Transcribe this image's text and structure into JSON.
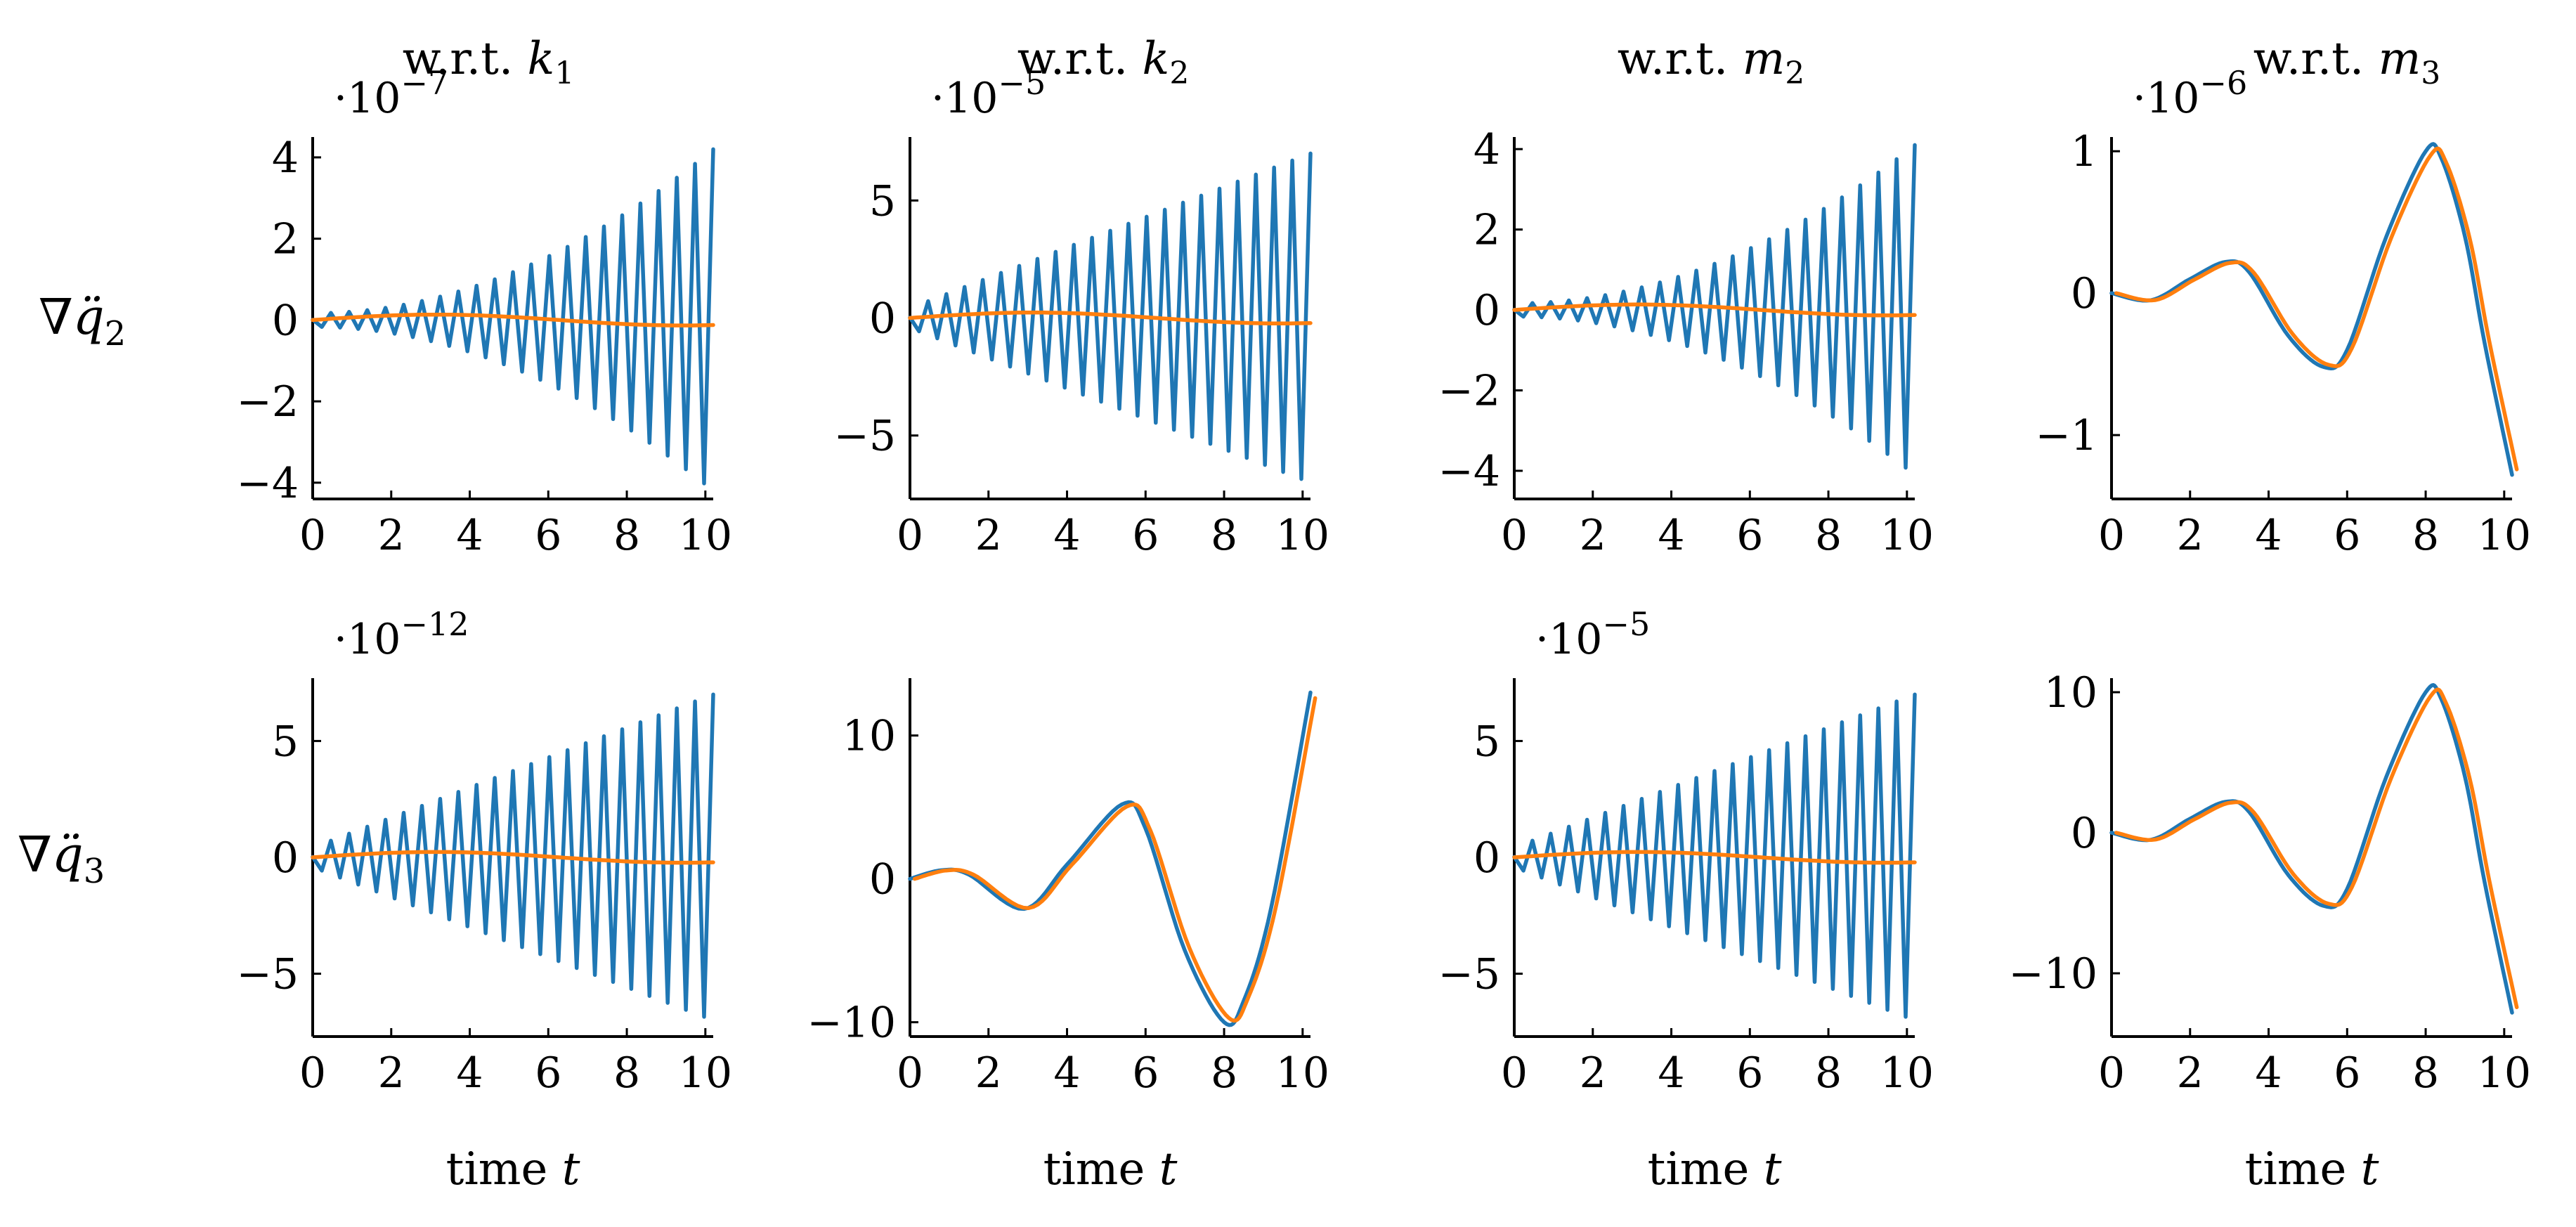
{
  "colors": {
    "blue": "#1f77b4",
    "orange": "#ff7f0e"
  },
  "col_titles": [
    "w.r.t. k1",
    "w.r.t. k2",
    "w.r.t. m2",
    "w.r.t. m3"
  ],
  "row_labels": [
    "∇q̈2",
    "∇q̈3"
  ],
  "chart_data": [
    {
      "type": "line",
      "row": 0,
      "col": 0,
      "title": "w.r.t. k1",
      "xlabel": "",
      "exponent": "·10−7",
      "xlim": [
        0,
        10.2
      ],
      "ylim": [
        -4.4,
        4.5
      ],
      "xticks": [
        0,
        2,
        4,
        6,
        8,
        10
      ],
      "yticks": [
        -4,
        -2,
        0,
        2,
        4
      ],
      "shape": "osc",
      "amplitude_end": 4.2,
      "growth": "quadratic",
      "offset_end": 0,
      "series_orange": "flat near zero"
    },
    {
      "type": "line",
      "row": 0,
      "col": 1,
      "title": "w.r.t. k2",
      "xlabel": "",
      "exponent": "·10−5",
      "xlim": [
        0,
        10.2
      ],
      "ylim": [
        -7.7,
        7.7
      ],
      "xticks": [
        0,
        2,
        4,
        6,
        8,
        10
      ],
      "yticks": [
        -5,
        0,
        5
      ],
      "shape": "osc",
      "amplitude_end": 7.0,
      "growth": "linear",
      "offset_end": 0,
      "series_orange": "flat near zero"
    },
    {
      "type": "line",
      "row": 0,
      "col": 2,
      "title": "w.r.t. m2",
      "xlabel": "",
      "exponent": "",
      "xlim": [
        0,
        10.2
      ],
      "ylim": [
        -4.7,
        4.3
      ],
      "xticks": [
        0,
        2,
        4,
        6,
        8,
        10
      ],
      "yticks": [
        -4,
        -2,
        0,
        2,
        4
      ],
      "shape": "osc",
      "amplitude_end": 4.1,
      "growth": "quadratic",
      "offset_end": 0,
      "series_orange": "flat near zero"
    },
    {
      "type": "line",
      "row": 0,
      "col": 3,
      "title": "w.r.t. m3",
      "xlabel": "",
      "exponent": "·10−6",
      "xlim": [
        0,
        10.2
      ],
      "ylim": [
        -1.45,
        1.1
      ],
      "xticks": [
        0,
        2,
        4,
        6,
        8,
        10
      ],
      "yticks": [
        -1,
        0,
        1
      ],
      "shape": "smooth",
      "scale": 1.0,
      "points": [
        [
          0,
          0.0
        ],
        [
          1,
          -0.05
        ],
        [
          2,
          0.1
        ],
        [
          2.9,
          0.22
        ],
        [
          3.5,
          0.15
        ],
        [
          4.5,
          -0.3
        ],
        [
          5.4,
          -0.52
        ],
        [
          6.0,
          -0.4
        ],
        [
          7.0,
          0.4
        ],
        [
          8.0,
          1.0
        ],
        [
          8.4,
          0.95
        ],
        [
          9.0,
          0.4
        ],
        [
          9.5,
          -0.35
        ],
        [
          10.2,
          -1.28
        ]
      ],
      "series_orange": "nearly identical, slightly lagged"
    },
    {
      "type": "line",
      "row": 1,
      "col": 0,
      "title": "",
      "xlabel": "time t",
      "exponent": "·10−12",
      "xlim": [
        0,
        10.2
      ],
      "ylim": [
        -7.7,
        7.7
      ],
      "xticks": [
        0,
        2,
        4,
        6,
        8,
        10
      ],
      "yticks": [
        -5,
        0,
        5
      ],
      "shape": "osc",
      "amplitude_end": 7.0,
      "growth": "linear",
      "offset_end": 0,
      "series_orange": "flat near zero"
    },
    {
      "type": "line",
      "row": 1,
      "col": 1,
      "title": "",
      "xlabel": "time t",
      "exponent": "",
      "xlim": [
        0,
        10.2
      ],
      "ylim": [
        -11,
        14
      ],
      "xticks": [
        0,
        2,
        4,
        6,
        8,
        10
      ],
      "yticks": [
        -10,
        0,
        10
      ],
      "shape": "smooth",
      "scale": 1.0,
      "points": [
        [
          0,
          0.0
        ],
        [
          0.8,
          0.6
        ],
        [
          1.5,
          0.3
        ],
        [
          2.9,
          -2.1
        ],
        [
          4.0,
          1.0
        ],
        [
          5.4,
          5.2
        ],
        [
          6.0,
          3.5
        ],
        [
          7.0,
          -5.0
        ],
        [
          8.0,
          -10.0
        ],
        [
          8.5,
          -8.5
        ],
        [
          9.2,
          -2.0
        ],
        [
          10.2,
          13.0
        ]
      ],
      "series_orange": "nearly identical, slightly lagged"
    },
    {
      "type": "line",
      "row": 1,
      "col": 2,
      "title": "",
      "xlabel": "time t",
      "exponent": "·10−5",
      "xlim": [
        0,
        10.2
      ],
      "ylim": [
        -7.7,
        7.7
      ],
      "xticks": [
        0,
        2,
        4,
        6,
        8,
        10
      ],
      "yticks": [
        -5,
        0,
        5
      ],
      "shape": "osc",
      "amplitude_end": 7.0,
      "growth": "linear",
      "offset_end": 0,
      "series_orange": "flat near zero"
    },
    {
      "type": "line",
      "row": 1,
      "col": 3,
      "title": "",
      "xlabel": "time t",
      "exponent": "",
      "xlim": [
        0,
        10.2
      ],
      "ylim": [
        -14.5,
        11
      ],
      "xticks": [
        0,
        2,
        4,
        6,
        8,
        10
      ],
      "yticks": [
        -10,
        0,
        10
      ],
      "shape": "smooth",
      "scale": 10.0,
      "points": [
        [
          0,
          0.0
        ],
        [
          1,
          -0.05
        ],
        [
          2,
          0.1
        ],
        [
          2.9,
          0.22
        ],
        [
          3.5,
          0.15
        ],
        [
          4.5,
          -0.3
        ],
        [
          5.4,
          -0.52
        ],
        [
          6.0,
          -0.4
        ],
        [
          7.0,
          0.4
        ],
        [
          8.0,
          1.0
        ],
        [
          8.4,
          0.95
        ],
        [
          9.0,
          0.4
        ],
        [
          9.5,
          -0.35
        ],
        [
          10.2,
          -1.28
        ]
      ],
      "series_orange": "nearly identical, slightly lagged"
    }
  ]
}
